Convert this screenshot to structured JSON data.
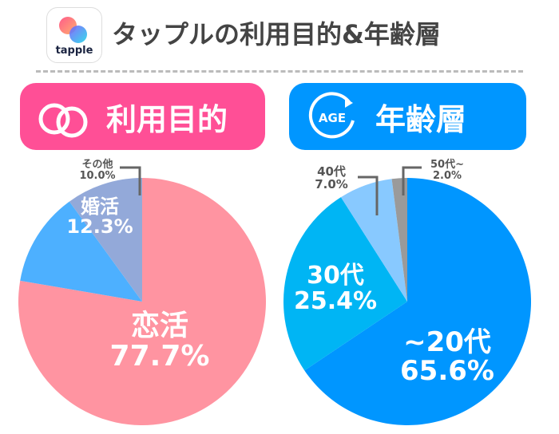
{
  "header": {
    "logo_text": "tapple",
    "title": "タップルの利用目的&年齢層"
  },
  "left_section": {
    "title": "利用目的",
    "icon": "rings-icon",
    "color": "#ff4f96"
  },
  "right_section": {
    "title": "年齢層",
    "icon": "age-icon",
    "icon_text": "AGE",
    "color": "#0096ff"
  },
  "chart_data": [
    {
      "type": "pie",
      "title": "利用目的",
      "categories": [
        "恋活",
        "婚活",
        "その他"
      ],
      "values": [
        77.7,
        12.3,
        10.0
      ],
      "labels": [
        "77.7%",
        "12.3%",
        "10.0%"
      ],
      "colors": [
        "#ff94a1",
        "#4db0ff",
        "#93a9d9"
      ]
    },
    {
      "type": "pie",
      "title": "年齢層",
      "categories": [
        "~20代",
        "30代",
        "40代",
        "50代~"
      ],
      "values": [
        65.6,
        25.4,
        7.0,
        2.0
      ],
      "labels": [
        "65.6%",
        "25.4%",
        "7.0%",
        "2.0%"
      ],
      "colors": [
        "#0096ff",
        "#00b5f4",
        "#88c9ff",
        "#9a9a9a"
      ]
    }
  ]
}
